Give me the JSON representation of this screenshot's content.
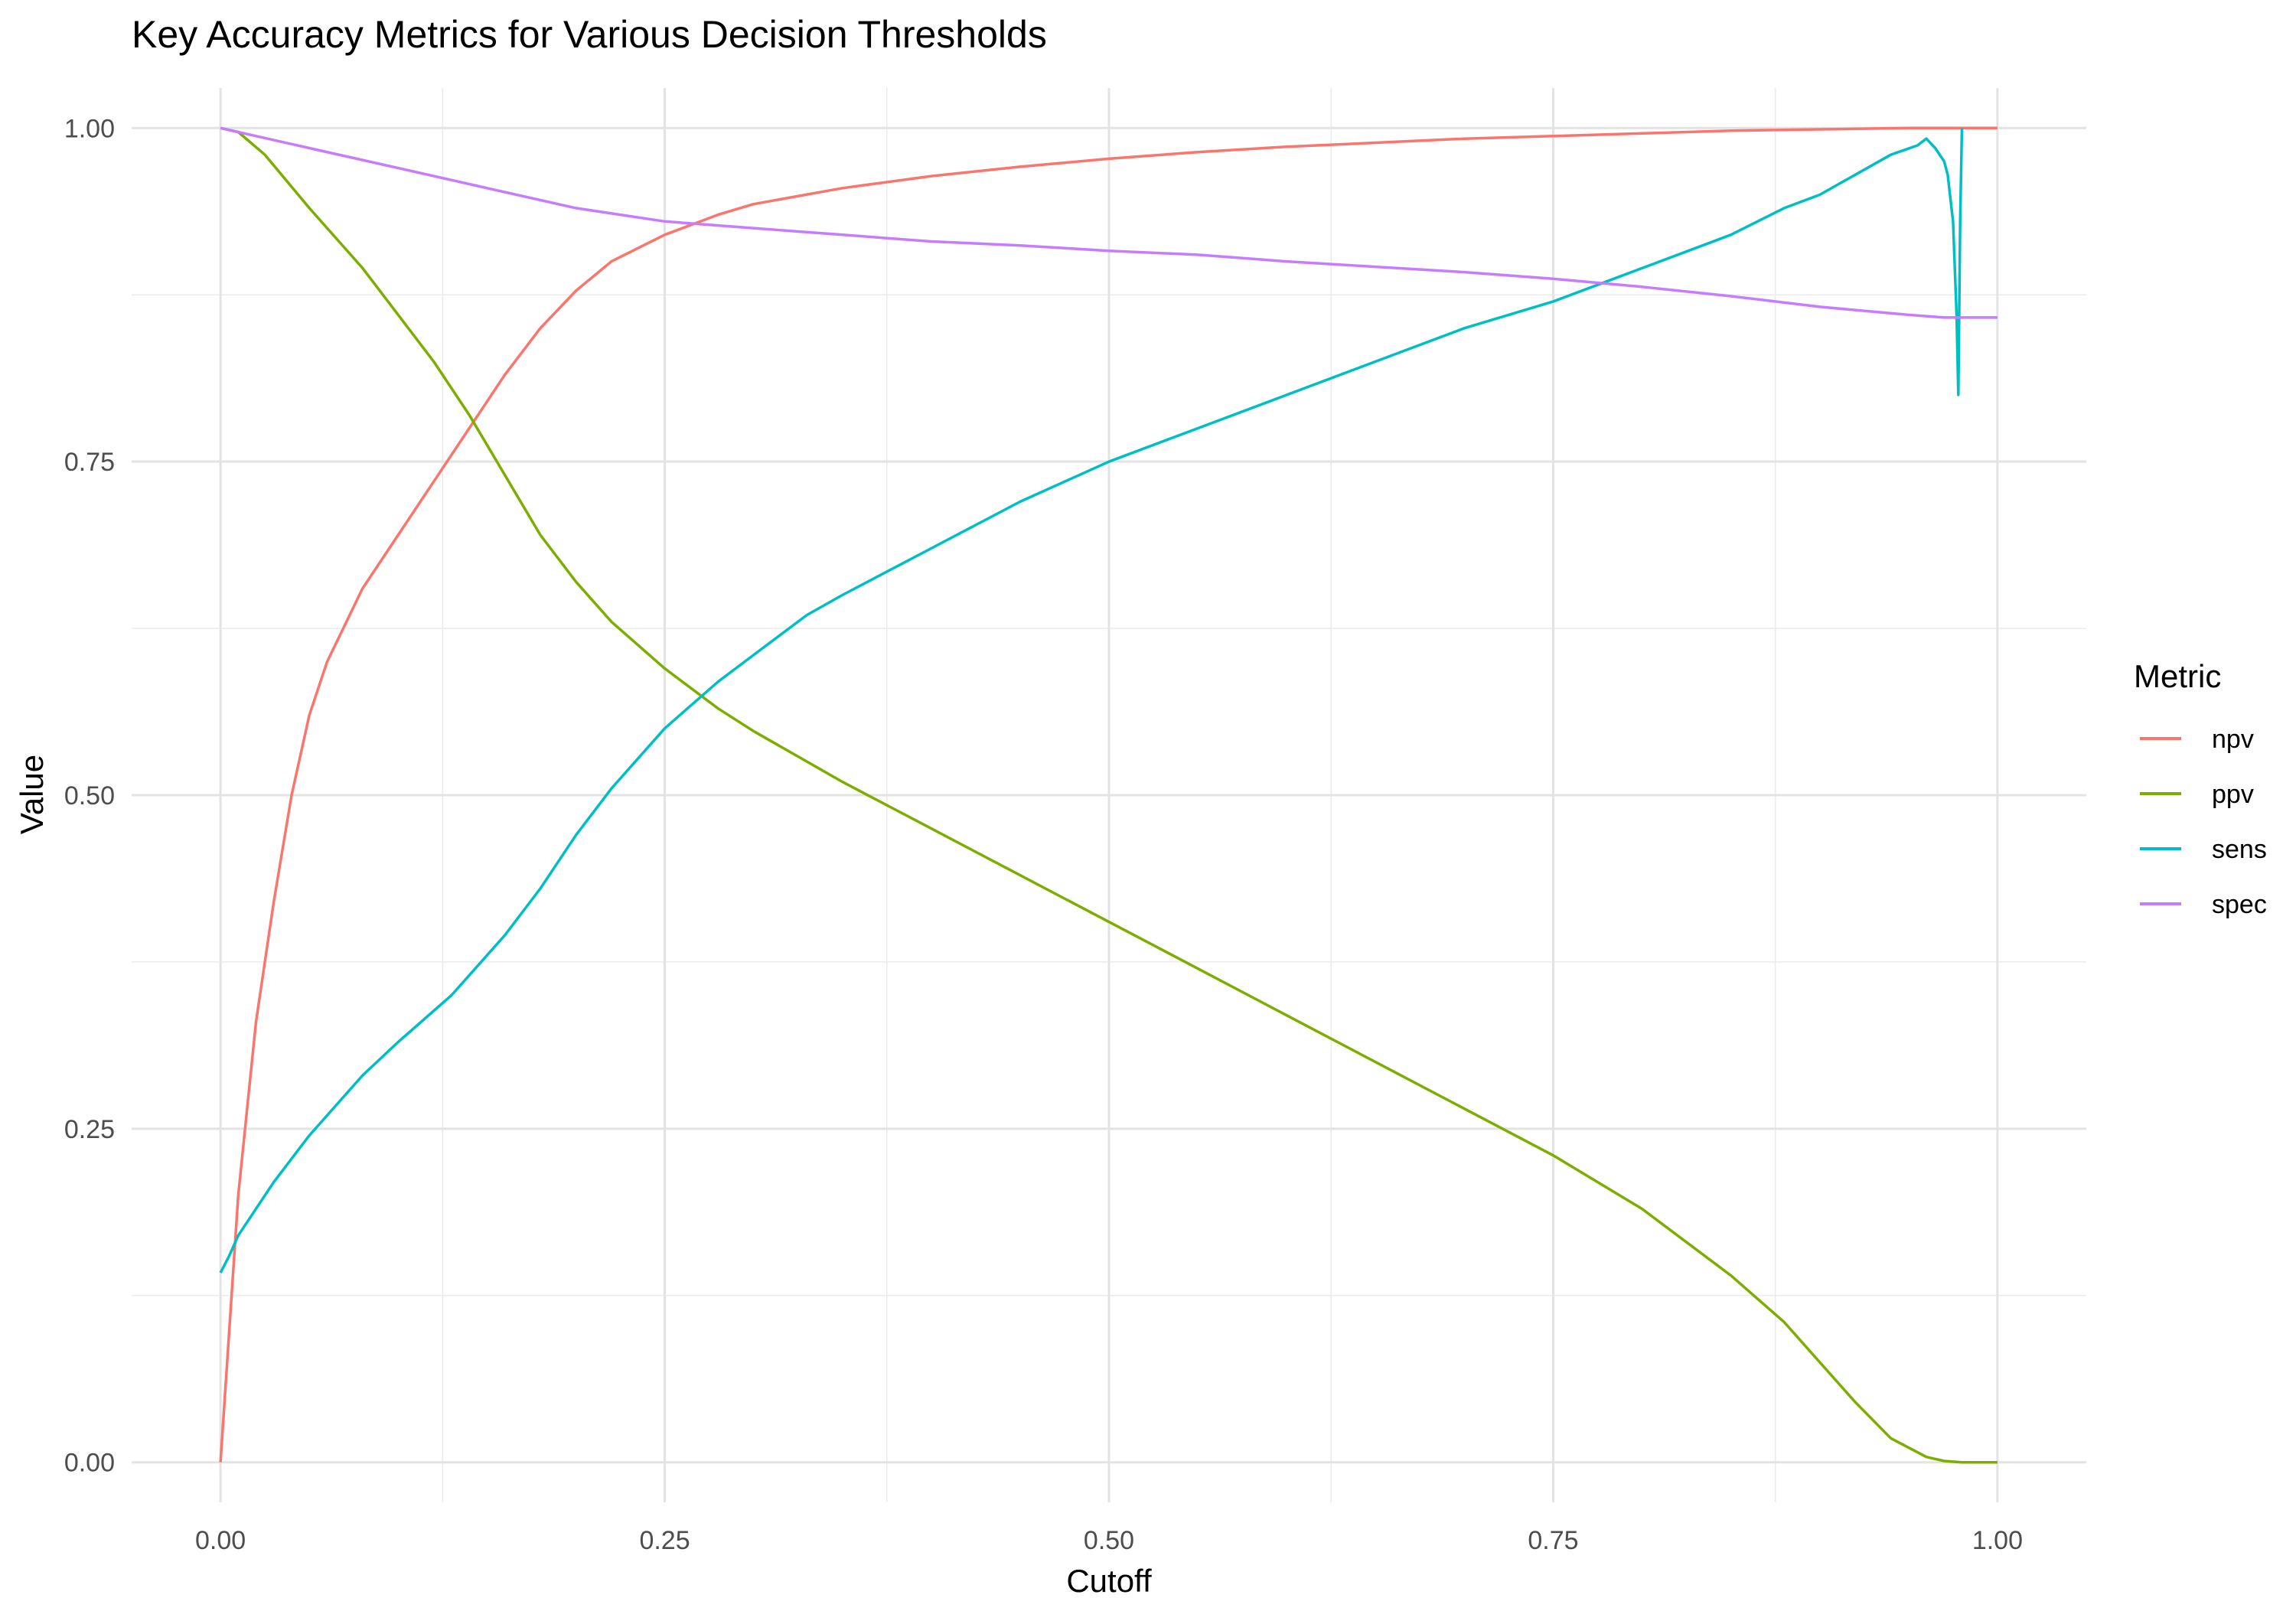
{
  "chart_data": {
    "type": "line",
    "title": "Key Accuracy Metrics for Various Decision Thresholds",
    "xlabel": "Cutoff",
    "ylabel": "Value",
    "xlim": [
      -0.05,
      1.05
    ],
    "ylim": [
      -0.03,
      1.03
    ],
    "xticks": [
      0,
      0.25,
      0.5,
      0.75,
      1
    ],
    "xtick_labels": [
      "0.00",
      "0.25",
      "0.50",
      "0.75",
      "1.00"
    ],
    "yticks": [
      0,
      0.25,
      0.5,
      0.75,
      1
    ],
    "ytick_labels": [
      "0.00",
      "0.25",
      "0.50",
      "0.75",
      "1.00"
    ],
    "grid": true,
    "legend": {
      "title": "Metric",
      "position": "right"
    },
    "series": [
      {
        "name": "npv",
        "color": "#F8766D",
        "x": [
          0,
          0.005,
          0.01,
          0.02,
          0.03,
          0.04,
          0.05,
          0.06,
          0.08,
          0.1,
          0.12,
          0.14,
          0.16,
          0.18,
          0.2,
          0.22,
          0.25,
          0.28,
          0.3,
          0.35,
          0.4,
          0.45,
          0.5,
          0.55,
          0.6,
          0.65,
          0.7,
          0.75,
          0.8,
          0.85,
          0.9,
          0.95,
          1.0
        ],
        "y": [
          0,
          0.1,
          0.2,
          0.33,
          0.42,
          0.5,
          0.56,
          0.6,
          0.655,
          0.695,
          0.735,
          0.775,
          0.815,
          0.85,
          0.878,
          0.9,
          0.92,
          0.935,
          0.943,
          0.955,
          0.964,
          0.971,
          0.977,
          0.982,
          0.986,
          0.989,
          0.992,
          0.994,
          0.996,
          0.998,
          0.999,
          1.0,
          1.0
        ]
      },
      {
        "name": "ppv",
        "color": "#7CAE00",
        "x": [
          0,
          0.01,
          0.025,
          0.05,
          0.08,
          0.1,
          0.12,
          0.14,
          0.16,
          0.18,
          0.2,
          0.22,
          0.25,
          0.28,
          0.3,
          0.35,
          0.4,
          0.45,
          0.5,
          0.55,
          0.6,
          0.65,
          0.7,
          0.75,
          0.8,
          0.85,
          0.88,
          0.9,
          0.92,
          0.94,
          0.96,
          0.97,
          0.98,
          1.0
        ],
        "y": [
          1.0,
          0.997,
          0.98,
          0.94,
          0.895,
          0.86,
          0.825,
          0.785,
          0.74,
          0.695,
          0.66,
          0.63,
          0.595,
          0.565,
          0.548,
          0.51,
          0.475,
          0.44,
          0.405,
          0.37,
          0.335,
          0.3,
          0.265,
          0.23,
          0.19,
          0.14,
          0.105,
          0.075,
          0.045,
          0.018,
          0.004,
          0.001,
          0,
          0
        ]
      },
      {
        "name": "sens",
        "color": "#00BFC4",
        "x": [
          0,
          0.005,
          0.01,
          0.03,
          0.05,
          0.08,
          0.1,
          0.13,
          0.16,
          0.18,
          0.2,
          0.22,
          0.25,
          0.28,
          0.3,
          0.33,
          0.35,
          0.4,
          0.45,
          0.5,
          0.55,
          0.6,
          0.65,
          0.7,
          0.75,
          0.78,
          0.8,
          0.85,
          0.88,
          0.9,
          0.92,
          0.94,
          0.955,
          0.96,
          0.965,
          0.97,
          0.972,
          0.975,
          0.977,
          0.978,
          0.979,
          0.98
        ],
        "y": [
          0.142,
          0.155,
          0.17,
          0.21,
          0.245,
          0.29,
          0.315,
          0.35,
          0.395,
          0.43,
          0.47,
          0.505,
          0.55,
          0.585,
          0.605,
          0.635,
          0.65,
          0.685,
          0.72,
          0.75,
          0.775,
          0.8,
          0.825,
          0.85,
          0.87,
          0.885,
          0.895,
          0.92,
          0.94,
          0.95,
          0.965,
          0.98,
          0.987,
          0.992,
          0.985,
          0.975,
          0.965,
          0.93,
          0.86,
          0.8,
          0.93,
          1.0
        ]
      },
      {
        "name": "spec",
        "color": "#C77CFF",
        "x": [
          0,
          0.05,
          0.1,
          0.15,
          0.2,
          0.25,
          0.3,
          0.35,
          0.4,
          0.45,
          0.5,
          0.55,
          0.6,
          0.65,
          0.7,
          0.75,
          0.8,
          0.85,
          0.9,
          0.95,
          0.97,
          1.0
        ],
        "y": [
          1.0,
          0.985,
          0.97,
          0.955,
          0.94,
          0.93,
          0.925,
          0.92,
          0.915,
          0.912,
          0.908,
          0.905,
          0.9,
          0.896,
          0.892,
          0.887,
          0.881,
          0.874,
          0.866,
          0.86,
          0.858,
          0.858
        ]
      }
    ]
  }
}
